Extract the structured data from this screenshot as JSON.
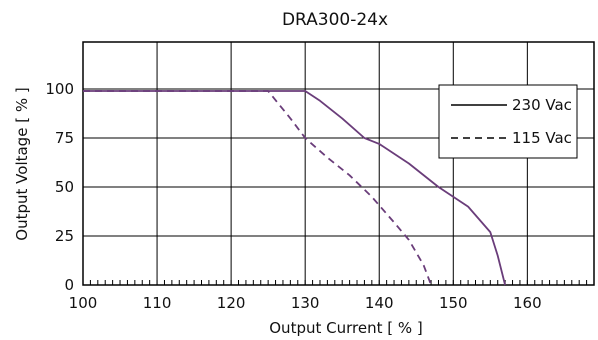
{
  "chart_data": {
    "type": "line",
    "title": "DRA300-24x",
    "xlabel": "Output Current [ % ]",
    "ylabel": "Output Voltage [ % ]",
    "xlim": [
      100,
      169
    ],
    "ylim": [
      0,
      124
    ],
    "xticks": [
      "100",
      "110",
      "120",
      "130",
      "140",
      "150",
      "160"
    ],
    "yticks": [
      "0",
      "25",
      "50",
      "75",
      "100"
    ],
    "grid": true,
    "legend_position": "top-right",
    "colors": {
      "line": "#6a3d7a",
      "grid": "#000000",
      "frame": "#000000"
    },
    "series": [
      {
        "name": "230 Vac",
        "style": "solid",
        "x": [
          100,
          130,
          132,
          135,
          138,
          140,
          144,
          148,
          152,
          155,
          156,
          157
        ],
        "y": [
          99,
          99,
          94,
          85,
          75,
          72,
          62,
          50,
          40,
          27,
          15,
          0
        ]
      },
      {
        "name": "115 Vac",
        "style": "dashed",
        "x": [
          100,
          125,
          128,
          130,
          133,
          136,
          139,
          142,
          144,
          146,
          147
        ],
        "y": [
          99,
          99,
          85,
          75,
          65,
          56,
          45,
          32,
          23,
          10,
          0
        ]
      }
    ]
  }
}
